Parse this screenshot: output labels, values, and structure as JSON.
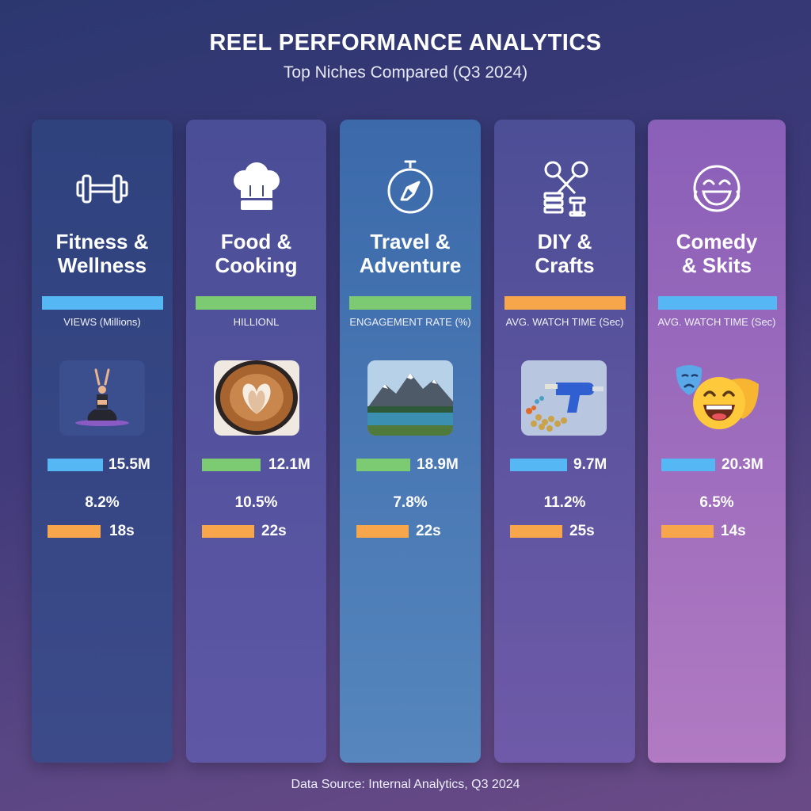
{
  "header": {
    "title": "REEL PERFORMANCE ANALYTICS",
    "subtitle": "Top Niches Compared (Q3 2024)"
  },
  "footer": {
    "source": "Data Source: Internal Analytics, Q3 2024"
  },
  "colors": {
    "blue": "#55b8f5",
    "green": "#7ccb72",
    "orange": "#f8a64c"
  },
  "chart_data": {
    "type": "table",
    "title": "REEL PERFORMANCE ANALYTICS",
    "subtitle": "Top Niches Compared (Q3 2024)",
    "categories": [
      "Fitness & Wellness",
      "Food & Cooking",
      "Travel & Adventure",
      "DIY & Crafts",
      "Comedy & Skits"
    ],
    "columns": [
      {
        "key": "fitness",
        "title": [
          "Fitness &",
          "Wellness"
        ],
        "icon": "dumbbell-icon",
        "thumbnail": "yoga-pose-thumbnail",
        "metric_label": "VIEWS (Millions)",
        "metric_color": "#55b8f5",
        "views": "15.5M",
        "engagement": "8.2%",
        "watch_time": "18s"
      },
      {
        "key": "food",
        "title": [
          "Food &",
          "Cooking"
        ],
        "icon": "chef-hat-icon",
        "thumbnail": "latte-art-thumbnail",
        "metric_label": "HILLIONL",
        "metric_color": "#7ccb72",
        "views": "12.1M",
        "engagement": "10.5%",
        "watch_time": "22s"
      },
      {
        "key": "travel",
        "title": [
          "Travel &",
          "Adventure"
        ],
        "icon": "compass-icon",
        "thumbnail": "mountain-lake-thumbnail",
        "metric_label": "ENGAGEMENT RATE (%)",
        "metric_color": "#7ccb72",
        "views": "18.9M",
        "engagement": "7.8%",
        "watch_time": "22s"
      },
      {
        "key": "diy",
        "title": [
          "DIY &",
          "Crafts"
        ],
        "icon": "scissors-tools-icon",
        "thumbnail": "glue-gun-beads-thumbnail",
        "metric_label": "AVG. WATCH TIME (Sec)",
        "metric_color": "#f8a64c",
        "views": "9.7M",
        "engagement": "11.2%",
        "watch_time": "25s"
      },
      {
        "key": "comedy",
        "title": [
          "Comedy",
          "& Skits"
        ],
        "icon": "laughing-face-icon",
        "thumbnail": "comedy-masks-thumbnail",
        "metric_label": "AVG. WATCH TIME (Sec)",
        "metric_color": "#55b8f5",
        "views": "20.3M",
        "engagement": "6.5%",
        "watch_time": "14s"
      }
    ]
  }
}
